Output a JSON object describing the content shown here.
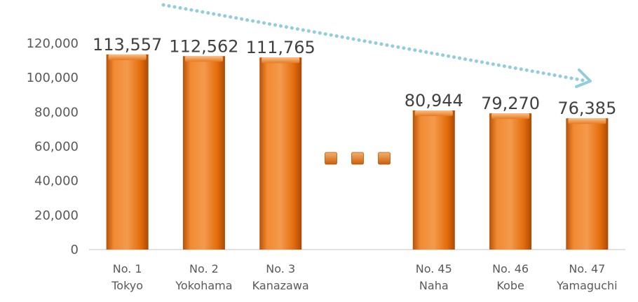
{
  "chart_data": {
    "type": "bar",
    "categories": [
      [
        "No. 1",
        "Tokyo"
      ],
      [
        "No. 2",
        "Yokohama"
      ],
      [
        "No. 3",
        "Kanazawa"
      ],
      [
        "",
        ""
      ],
      [
        "No. 45",
        "Naha"
      ],
      [
        "No. 46",
        "Kobe"
      ],
      [
        "No. 47",
        "Yamaguchi"
      ]
    ],
    "values": [
      113557,
      112562,
      111765,
      null,
      80944,
      79270,
      76385
    ],
    "data_labels": [
      "113,557",
      "112,562",
      "111,765",
      "",
      "80,944",
      "79,270",
      "76,385"
    ],
    "yticks": [
      "0",
      "20,000",
      "40,000",
      "60,000",
      "80,000",
      "100,000",
      "120,000"
    ],
    "ylim": [
      0,
      120000
    ],
    "gap_marker": "ellipsis-squares",
    "trend_arrow": "dotted, declining, top-left to right",
    "grid": false,
    "bar_color": "#E36C0A",
    "bar_highlight": "#F8A255",
    "arrow_color": "#92CDDC",
    "axis_color": "#D9D9D9",
    "title": "",
    "xlabel": "",
    "ylabel": ""
  }
}
